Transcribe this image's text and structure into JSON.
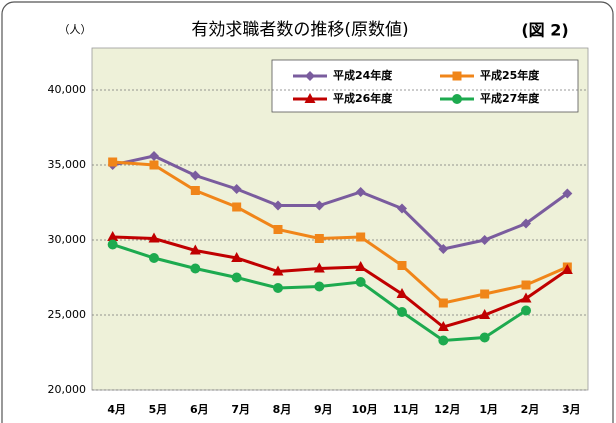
{
  "chart_data": {
    "type": "line",
    "title": "有効求職者数の推移(原数値)",
    "unit_label": "（人）",
    "figure_label": "(図 2)",
    "categories": [
      "4月",
      "5月",
      "6月",
      "7月",
      "8月",
      "9月",
      "10月",
      "11月",
      "12月",
      "1月",
      "2月",
      "3月"
    ],
    "series": [
      {
        "name": "平成24年度",
        "color": "#7a5c9e",
        "marker": "diamond",
        "values": [
          35000,
          35600,
          34300,
          33400,
          32300,
          32300,
          33200,
          32100,
          29400,
          30000,
          31100,
          33100
        ]
      },
      {
        "name": "平成25年度",
        "color": "#f08519",
        "marker": "square",
        "values": [
          35200,
          35000,
          33300,
          32200,
          30700,
          30100,
          30200,
          28300,
          25800,
          26400,
          27000,
          28200
        ]
      },
      {
        "name": "平成26年度",
        "color": "#c00000",
        "marker": "triangle",
        "values": [
          30200,
          30100,
          29300,
          28800,
          27900,
          28100,
          28200,
          26400,
          24200,
          25000,
          26100,
          28000
        ]
      },
      {
        "name": "平成27年度",
        "color": "#1daa4f",
        "marker": "circle",
        "values": [
          29700,
          28800,
          28100,
          27500,
          26800,
          26900,
          27200,
          25200,
          23300,
          23500,
          25300,
          null
        ]
      }
    ],
    "ylim": [
      20000,
      40000
    ],
    "yticks": [
      {
        "value": 20000,
        "label": "20,000"
      },
      {
        "value": 25000,
        "label": "25,000"
      },
      {
        "value": 30000,
        "label": "30,000"
      },
      {
        "value": 35000,
        "label": "35,000"
      },
      {
        "value": 40000,
        "label": "40,000"
      }
    ],
    "grid": true
  }
}
